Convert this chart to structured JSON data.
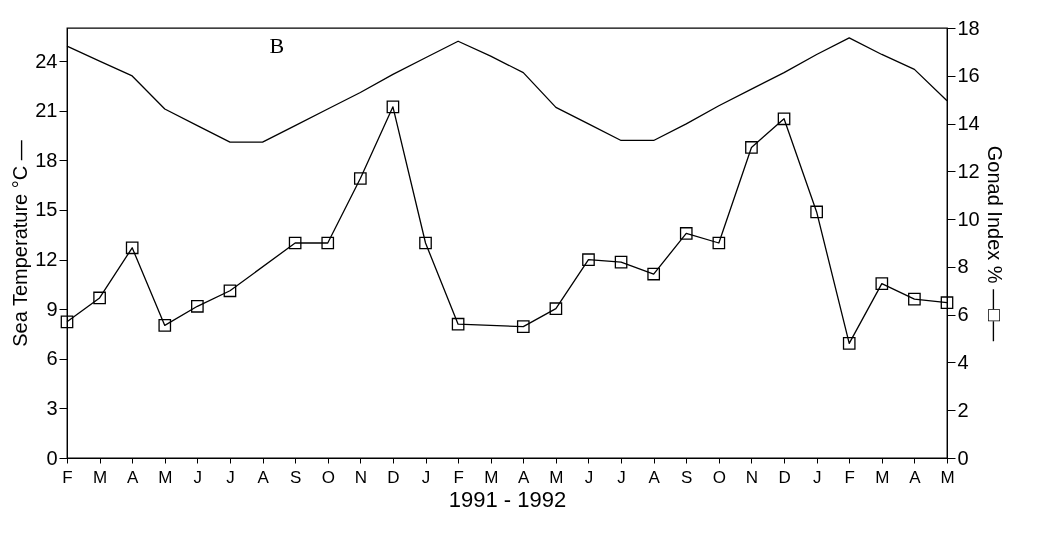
{
  "chart_data": {
    "type": "line",
    "xlabel": "1991 - 1992",
    "ylabel": "Sea Temperature °C —",
    "y2label": "Gonad Index % —□—",
    "annotations": [
      "B"
    ],
    "categories": [
      "F",
      "M",
      "A",
      "M",
      "J",
      "J",
      "A",
      "S",
      "O",
      "N",
      "D",
      "J",
      "F",
      "M",
      "A",
      "M",
      "J",
      "J",
      "A",
      "S",
      "O",
      "N",
      "D",
      "J",
      "F",
      "M",
      "A",
      "M"
    ],
    "series": [
      {
        "color": "#000000",
        "marker": "none",
        "values": [
          24.9,
          24.0,
          23.1,
          21.1,
          20.1,
          19.1,
          19.1,
          20.1,
          21.1,
          22.1,
          23.2,
          24.2,
          25.2,
          24.3,
          23.3,
          21.2,
          20.2,
          19.2,
          19.2,
          20.2,
          21.3,
          22.3,
          23.3,
          24.4,
          25.4,
          24.4,
          23.5,
          21.6
        ]
      },
      {
        "color": "#000000",
        "marker": "square",
        "axis": "y2",
        "values": [
          5.7,
          6.7,
          8.8,
          5.55,
          6.35,
          7.0,
          null,
          9.0,
          9.0,
          11.7,
          14.7,
          9.0,
          5.6,
          null,
          5.5,
          6.25,
          8.3,
          8.2,
          7.7,
          9.4,
          9.0,
          13.0,
          14.2,
          10.3,
          4.8,
          7.3,
          6.65,
          6.5
        ]
      }
    ],
    "ylim": [
      0,
      26
    ],
    "yticks": [
      0,
      3,
      6,
      9,
      12,
      15,
      18,
      21,
      24
    ],
    "y2lim": [
      0,
      18
    ],
    "y2ticks": [
      0,
      2,
      4,
      6,
      8,
      10,
      12,
      14,
      16,
      18
    ],
    "grid": false
  }
}
